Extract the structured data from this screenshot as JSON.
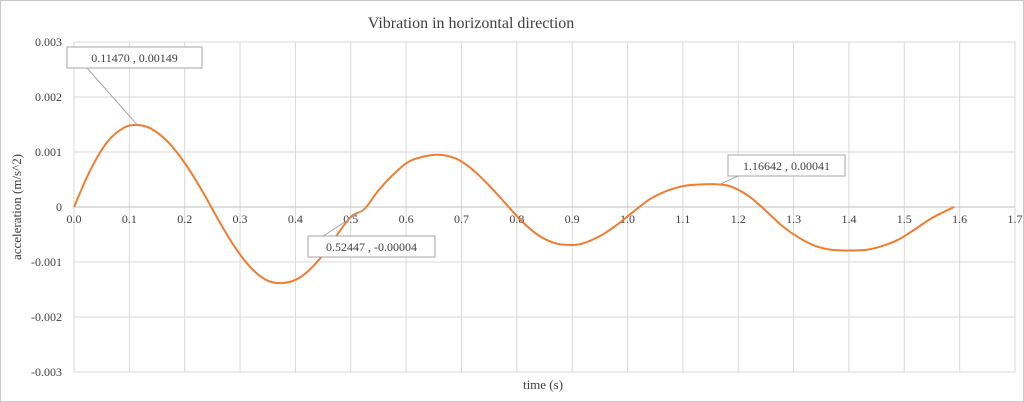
{
  "chart_data": {
    "type": "line",
    "title": "Vibration in horizontal  direction",
    "xlabel": "time (s)",
    "ylabel": "acceleration (m/s^2)",
    "xlim": [
      0,
      1.7
    ],
    "ylim": [
      -0.003,
      0.003
    ],
    "grid": true,
    "x_ticks": [
      0.0,
      0.1,
      0.2,
      0.3,
      0.4,
      0.5,
      0.6,
      0.7,
      0.8,
      0.9,
      1.0,
      1.1,
      1.2,
      1.3,
      1.4,
      1.5,
      1.6,
      1.7
    ],
    "x_tick_labels": [
      "0.0",
      "0.1",
      "0.2",
      "0.3",
      "0.4",
      "0.5",
      "0.6",
      "0.7",
      "0.8",
      "0.9",
      "1.0",
      "1.1",
      "1.2",
      "1.3",
      "1.4",
      "1.5",
      "1.6",
      "1.7"
    ],
    "y_ticks": [
      0.003,
      0.002,
      0.001,
      0,
      -0.001,
      -0.002,
      -0.003
    ],
    "y_tick_labels": [
      "0.003",
      "0.002",
      "0.001",
      "0",
      "-0.001",
      "-0.002",
      "-0.003"
    ],
    "series": [
      {
        "color": "#ED7D31",
        "x": [
          0.0,
          0.03,
          0.06,
          0.09,
          0.1147,
          0.14,
          0.17,
          0.2,
          0.23,
          0.26,
          0.29,
          0.32,
          0.35,
          0.38,
          0.41,
          0.44,
          0.47,
          0.5,
          0.52447,
          0.55,
          0.58,
          0.61,
          0.655,
          0.69,
          0.72,
          0.75,
          0.78,
          0.81,
          0.84,
          0.87,
          0.9,
          0.92,
          0.95,
          0.98,
          1.01,
          1.04,
          1.07,
          1.1,
          1.13,
          1.16642,
          1.19,
          1.22,
          1.25,
          1.28,
          1.31,
          1.34,
          1.37,
          1.4,
          1.43,
          1.46,
          1.49,
          1.52,
          1.55,
          1.59
        ],
        "y": [
          0.0,
          0.00068,
          0.00118,
          0.00144,
          0.00149,
          0.00142,
          0.00118,
          0.0008,
          0.00032,
          -0.00022,
          -0.00072,
          -0.00111,
          -0.00134,
          -0.00138,
          -0.00127,
          -0.00099,
          -0.00058,
          -0.00018,
          -4e-05,
          0.0003,
          0.00062,
          0.00085,
          0.00095,
          0.00088,
          0.00068,
          0.00039,
          6e-05,
          -0.00027,
          -0.00052,
          -0.00066,
          -0.00069,
          -0.00066,
          -0.00053,
          -0.00033,
          -9e-05,
          0.00014,
          0.00029,
          0.00038,
          0.00041,
          0.00041,
          0.00036,
          0.00019,
          -7e-05,
          -0.00035,
          -0.00056,
          -0.00071,
          -0.00078,
          -0.00079,
          -0.00078,
          -0.00071,
          -0.00059,
          -0.0004,
          -0.0002,
          0.0
        ]
      }
    ],
    "annotations": [
      {
        "text": "0.11470 , 0.00149",
        "x": 0.1147,
        "y": 0.00149
      },
      {
        "text": "0.52447 , -0.00004",
        "x": 0.52447,
        "y": -4e-05
      },
      {
        "text": "1.16642 , 0.00041",
        "x": 1.16642,
        "y": 0.00041
      }
    ],
    "colors": {
      "line": "#ED7D31",
      "grid": "#d9d9d9",
      "text": "#404040",
      "label_border": "#a6a6a6"
    }
  }
}
